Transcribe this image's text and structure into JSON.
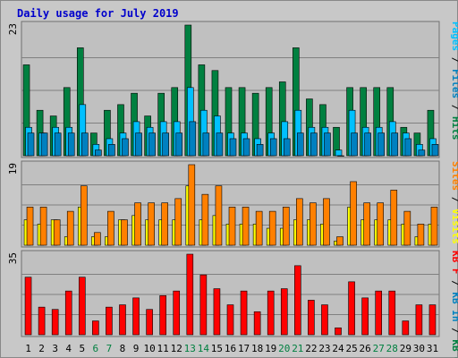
{
  "chart_data": {
    "type": "bar",
    "title": "Daily usage for July 2019",
    "days": [
      "1",
      "2",
      "3",
      "4",
      "5",
      "6",
      "7",
      "8",
      "9",
      "10",
      "11",
      "12",
      "13",
      "14",
      "15",
      "16",
      "17",
      "18",
      "19",
      "20",
      "21",
      "22",
      "23",
      "24",
      "25",
      "26",
      "27",
      "28",
      "29",
      "30",
      "31"
    ],
    "weekend_days": [
      "6",
      "7",
      "13",
      "14",
      "20",
      "21",
      "27",
      "28"
    ],
    "panels": [
      {
        "id": "hits",
        "max_label": "23",
        "ylim": [
          0,
          23
        ],
        "series": [
          {
            "name": "Hits",
            "color": "#008040",
            "values": [
              16,
              8,
              7,
              12,
              19,
              4,
              8,
              9,
              11,
              7,
              11,
              12,
              23,
              16,
              15,
              12,
              12,
              11,
              12,
              13,
              19,
              10,
              9,
              5,
              12,
              12,
              12,
              12,
              5,
              4,
              8
            ]
          },
          {
            "name": "Files",
            "color": "#00c0ff",
            "values": [
              5,
              4,
              5,
              5,
              9,
              2,
              3,
              4,
              6,
              5,
              6,
              6,
              12,
              8,
              7,
              4,
              4,
              3,
              4,
              6,
              8,
              5,
              5,
              1,
              8,
              5,
              5,
              6,
              4,
              2,
              3
            ]
          },
          {
            "name": "Pages",
            "color": "#0080c0",
            "values": [
              4,
              4,
              4,
              4,
              4,
              1,
              2,
              3,
              4,
              4,
              4,
              4,
              6,
              4,
              4,
              3,
              3,
              2,
              3,
              3,
              4,
              4,
              4,
              0,
              4,
              4,
              4,
              4,
              3,
              1,
              2
            ]
          }
        ],
        "axis_label": [
          "Pages",
          "Files",
          "Hits"
        ],
        "axis_label_colors": [
          "#00c0ff",
          "#0080c0",
          "#008040"
        ]
      },
      {
        "id": "sites",
        "max_label": "19",
        "ylim": [
          0,
          19
        ],
        "series": [
          {
            "name": "Visits",
            "color": "#ffff00",
            "values": [
              6,
              5,
              6,
              2,
              9,
              2,
              2,
              6,
              7,
              6,
              6,
              6,
              14,
              6,
              7,
              5,
              5,
              5,
              4,
              4,
              6,
              6,
              5,
              1,
              9,
              6,
              6,
              6,
              5,
              2,
              5
            ]
          },
          {
            "name": "Sites",
            "color": "#ff8000",
            "values": [
              9,
              9,
              6,
              8,
              14,
              3,
              8,
              6,
              10,
              10,
              10,
              11,
              19,
              12,
              14,
              9,
              9,
              8,
              8,
              9,
              11,
              10,
              11,
              2,
              15,
              10,
              10,
              13,
              8,
              5,
              9
            ]
          }
        ],
        "axis_label": [
          "Sites",
          "Visits"
        ],
        "axis_label_colors": [
          "#ff8000",
          "#ffff00"
        ]
      },
      {
        "id": "kbytes",
        "max_label": "35",
        "ylim": [
          0,
          35
        ],
        "series": [
          {
            "name": "KB F",
            "color": "#ff0000",
            "values": [
              25,
              12,
              11,
              19,
              25,
              6,
              12,
              13,
              16,
              11,
              17,
              19,
              35,
              26,
              20,
              13,
              19,
              10,
              19,
              20,
              30,
              15,
              13,
              3,
              23,
              16,
              19,
              19,
              6,
              13,
              13
            ]
          }
        ],
        "axis_label": [
          "KB F",
          "KB In",
          "KB Out"
        ],
        "axis_label_colors": [
          "#ff0000",
          "#0080c0",
          "#008040"
        ]
      }
    ]
  },
  "colors": {
    "title": "#0000cc",
    "plot_bg": "#c0c0c0",
    "frame_bg": "#c8c8c8",
    "weekday_text": "#000000",
    "weekend_text": "#008040"
  }
}
